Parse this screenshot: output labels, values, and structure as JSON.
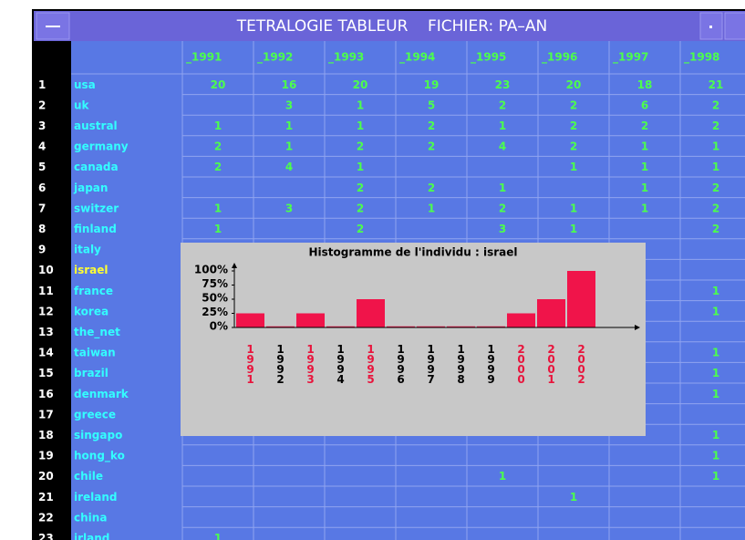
{
  "window": {
    "title": "TETRALOGIE TABLEUR    FICHIER: PA–AN"
  },
  "table": {
    "columns": [
      "_1991",
      "_1992",
      "_1993",
      "_1994",
      "_1995",
      "_1996",
      "_1997",
      "_1998"
    ],
    "rows": [
      {
        "number": 1,
        "label": "usa",
        "cells": [
          20,
          16,
          20,
          19,
          23,
          20,
          18,
          21
        ]
      },
      {
        "number": 2,
        "label": "uk",
        "cells": [
          null,
          3,
          1,
          5,
          2,
          2,
          6,
          2
        ]
      },
      {
        "number": 3,
        "label": "austral",
        "cells": [
          1,
          1,
          1,
          2,
          1,
          2,
          2,
          2
        ]
      },
      {
        "number": 4,
        "label": "germany",
        "cells": [
          2,
          1,
          2,
          2,
          4,
          2,
          1,
          1
        ]
      },
      {
        "number": 5,
        "label": "canada",
        "cells": [
          2,
          4,
          1,
          null,
          null,
          1,
          1,
          1
        ]
      },
      {
        "number": 6,
        "label": "japan",
        "cells": [
          null,
          null,
          2,
          2,
          1,
          null,
          1,
          2
        ]
      },
      {
        "number": 7,
        "label": "switzer",
        "cells": [
          1,
          3,
          2,
          1,
          2,
          1,
          1,
          2
        ]
      },
      {
        "number": 8,
        "label": "finland",
        "cells": [
          1,
          null,
          2,
          null,
          3,
          1,
          null,
          2
        ]
      },
      {
        "number": 9,
        "label": "italy",
        "cells": [
          null,
          null,
          null,
          null,
          null,
          null,
          null,
          null
        ]
      },
      {
        "number": 10,
        "label": "israel",
        "selected": true,
        "cells": [
          null,
          null,
          null,
          null,
          null,
          null,
          null,
          null
        ]
      },
      {
        "number": 11,
        "label": "france",
        "cells": [
          null,
          null,
          null,
          null,
          null,
          null,
          null,
          1
        ]
      },
      {
        "number": 12,
        "label": "korea",
        "cells": [
          null,
          null,
          null,
          null,
          null,
          null,
          null,
          1
        ]
      },
      {
        "number": 13,
        "label": "the_net",
        "cells": [
          null,
          null,
          null,
          null,
          null,
          null,
          null,
          null
        ]
      },
      {
        "number": 14,
        "label": "taiwan",
        "cells": [
          null,
          null,
          null,
          null,
          null,
          null,
          null,
          1
        ]
      },
      {
        "number": 15,
        "label": "brazil",
        "cells": [
          null,
          null,
          null,
          null,
          null,
          null,
          null,
          1
        ]
      },
      {
        "number": 16,
        "label": "denmark",
        "cells": [
          null,
          null,
          null,
          null,
          null,
          null,
          null,
          1
        ]
      },
      {
        "number": 17,
        "label": "greece",
        "cells": [
          null,
          null,
          null,
          null,
          null,
          null,
          null,
          null
        ]
      },
      {
        "number": 18,
        "label": "singapo",
        "cells": [
          null,
          null,
          null,
          null,
          null,
          null,
          null,
          1
        ]
      },
      {
        "number": 19,
        "label": "hong_ko",
        "cells": [
          null,
          null,
          null,
          null,
          null,
          null,
          null,
          1
        ]
      },
      {
        "number": 20,
        "label": "chile",
        "cells": [
          null,
          null,
          null,
          null,
          1,
          null,
          null,
          1
        ]
      },
      {
        "number": 21,
        "label": "ireland",
        "cells": [
          null,
          null,
          null,
          null,
          null,
          1,
          null,
          null
        ]
      },
      {
        "number": 22,
        "label": "china",
        "cells": [
          null,
          null,
          null,
          null,
          null,
          null,
          null,
          null
        ]
      },
      {
        "number": 23,
        "label": "irland",
        "cells": [
          1,
          null,
          null,
          null,
          null,
          null,
          null,
          null
        ]
      }
    ]
  },
  "histogram": {
    "type": "bar",
    "title": "Histogramme de l'individu : israel",
    "categories": [
      "1991",
      "1992",
      "1993",
      "1994",
      "1995",
      "1996",
      "1997",
      "1998",
      "1999",
      "2000",
      "2001",
      "2002"
    ],
    "values": [
      25,
      2,
      25,
      2,
      50,
      2,
      2,
      2,
      2,
      25,
      50,
      100
    ],
    "colors": [
      "#e8143c",
      "#000000",
      "#e8143c",
      "#000000",
      "#e8143c",
      "#000000",
      "#000000",
      "#000000",
      "#000000",
      "#e8143c",
      "#e8143c",
      "#e8143c"
    ],
    "color": "#f0144a",
    "ylim": [
      0,
      100
    ],
    "yticks": [
      {
        "value": 0,
        "label": "0%"
      },
      {
        "value": 25,
        "label": "25%"
      },
      {
        "value": 50,
        "label": "50%"
      },
      {
        "value": 75,
        "label": "75%"
      },
      {
        "value": 100,
        "label": "100%"
      }
    ]
  }
}
